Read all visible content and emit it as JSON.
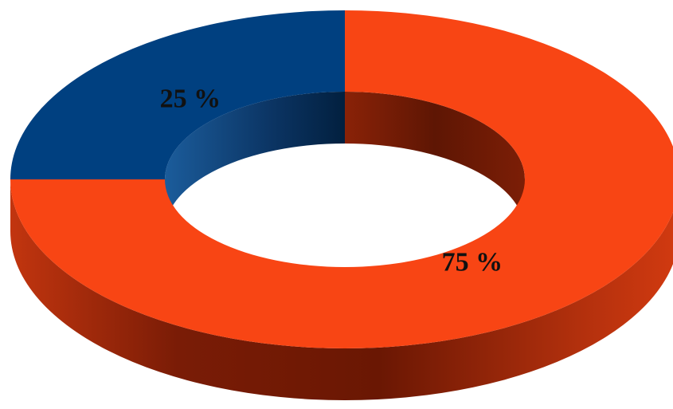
{
  "chart_data": {
    "type": "pie",
    "style": "3d-donut",
    "title": "",
    "categories": [
      "",
      ""
    ],
    "values": [
      75,
      25
    ],
    "data_labels": [
      "75 %",
      "25 %"
    ],
    "colors": [
      "#F84514",
      "#004080"
    ],
    "legend": "none"
  }
}
